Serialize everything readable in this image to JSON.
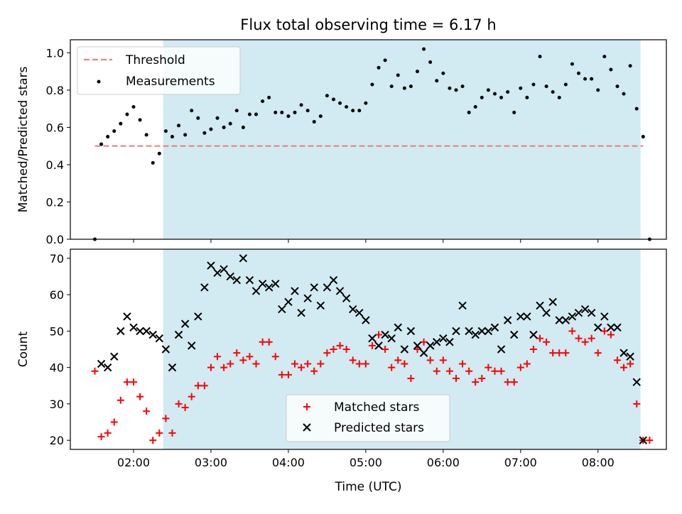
{
  "figure": {
    "title": "Flux total observing time = 6.17 h"
  },
  "chart_data": [
    {
      "type": "scatter",
      "ylabel": "Matched/Predicted stars",
      "xlim": [
        "01:11",
        "08:53"
      ],
      "ylim": [
        0,
        1.07
      ],
      "yticks": [
        0.0,
        0.2,
        0.4,
        0.6,
        0.8,
        1.0
      ],
      "ytick_labels": [
        "0.0",
        "0.2",
        "0.4",
        "0.6",
        "0.8",
        "1.0"
      ],
      "shaded_interval": [
        "02:23",
        "08:33"
      ],
      "shade_color": "#add8e6",
      "legend": {
        "position": "upper-left",
        "entries": [
          "Threshold",
          "Measurements"
        ]
      },
      "series": [
        {
          "name": "Threshold",
          "style": "dashed-line",
          "color": "#f08080",
          "x": [
            "01:30",
            "08:35"
          ],
          "values": [
            0.5,
            0.5
          ]
        },
        {
          "name": "Measurements",
          "style": "dots",
          "color": "#000000",
          "x": [
            "01:30",
            "01:35",
            "01:40",
            "01:45",
            "01:50",
            "01:55",
            "02:00",
            "02:05",
            "02:10",
            "02:15",
            "02:20",
            "02:25",
            "02:30",
            "02:35",
            "02:40",
            "02:45",
            "02:50",
            "02:55",
            "03:00",
            "03:05",
            "03:10",
            "03:15",
            "03:20",
            "03:25",
            "03:30",
            "03:35",
            "03:40",
            "03:45",
            "03:50",
            "03:55",
            "04:00",
            "04:05",
            "04:10",
            "04:15",
            "04:20",
            "04:25",
            "04:30",
            "04:35",
            "04:40",
            "04:45",
            "04:50",
            "04:55",
            "05:00",
            "05:05",
            "05:10",
            "05:15",
            "05:20",
            "05:25",
            "05:30",
            "05:35",
            "05:40",
            "05:45",
            "05:50",
            "05:55",
            "06:00",
            "06:05",
            "06:10",
            "06:15",
            "06:20",
            "06:25",
            "06:30",
            "06:35",
            "06:40",
            "06:45",
            "06:50",
            "06:55",
            "07:00",
            "07:05",
            "07:10",
            "07:15",
            "07:20",
            "07:25",
            "07:30",
            "07:35",
            "07:40",
            "07:45",
            "07:50",
            "07:55",
            "08:00",
            "08:05",
            "08:10",
            "08:15",
            "08:20",
            "08:25",
            "08:30",
            "08:35",
            "08:40"
          ],
          "values": [
            0.0,
            0.51,
            0.55,
            0.58,
            0.62,
            0.67,
            0.71,
            0.64,
            0.56,
            0.41,
            0.46,
            0.58,
            0.55,
            0.61,
            0.56,
            0.69,
            0.65,
            0.57,
            0.59,
            0.65,
            0.6,
            0.62,
            0.69,
            0.6,
            0.67,
            0.67,
            0.74,
            0.76,
            0.68,
            0.68,
            0.66,
            0.68,
            0.72,
            0.69,
            0.63,
            0.66,
            0.77,
            0.75,
            0.73,
            0.71,
            0.69,
            0.69,
            0.73,
            0.83,
            0.92,
            0.96,
            0.82,
            0.88,
            0.81,
            0.82,
            0.9,
            1.02,
            0.95,
            0.85,
            0.89,
            0.81,
            0.8,
            0.82,
            0.68,
            0.71,
            0.76,
            0.8,
            0.78,
            0.76,
            0.79,
            0.68,
            0.81,
            0.76,
            0.83,
            0.98,
            0.82,
            0.79,
            0.76,
            0.83,
            0.94,
            0.89,
            0.86,
            0.86,
            0.8,
            0.98,
            0.91,
            0.82,
            0.78,
            0.93,
            0.7,
            0.55,
            0.0
          ]
        }
      ]
    },
    {
      "type": "scatter",
      "xlabel": "Time (UTC)",
      "ylabel": "Count",
      "xlim": [
        "01:11",
        "08:53"
      ],
      "ylim": [
        17.5,
        72.5
      ],
      "xticks": [
        "02:00",
        "03:00",
        "04:00",
        "05:00",
        "06:00",
        "07:00",
        "08:00"
      ],
      "yticks": [
        20,
        30,
        40,
        50,
        60,
        70
      ],
      "ytick_labels": [
        "20",
        "30",
        "40",
        "50",
        "60",
        "70"
      ],
      "shaded_interval": [
        "02:23",
        "08:33"
      ],
      "shade_color": "#add8e6",
      "legend": {
        "position": "lower-center",
        "entries": [
          "Matched stars",
          "Predicted stars"
        ]
      },
      "series": [
        {
          "name": "Matched stars",
          "marker": "plus",
          "color": "#ff0000",
          "x": [
            "01:30",
            "01:35",
            "01:40",
            "01:45",
            "01:50",
            "01:55",
            "02:00",
            "02:05",
            "02:10",
            "02:15",
            "02:20",
            "02:25",
            "02:30",
            "02:35",
            "02:40",
            "02:45",
            "02:50",
            "02:55",
            "03:00",
            "03:05",
            "03:10",
            "03:15",
            "03:20",
            "03:25",
            "03:30",
            "03:35",
            "03:40",
            "03:45",
            "03:50",
            "03:55",
            "04:00",
            "04:05",
            "04:10",
            "04:15",
            "04:20",
            "04:25",
            "04:30",
            "04:35",
            "04:40",
            "04:45",
            "04:50",
            "04:55",
            "05:00",
            "05:05",
            "05:10",
            "05:15",
            "05:20",
            "05:25",
            "05:30",
            "05:35",
            "05:40",
            "05:45",
            "05:50",
            "05:55",
            "06:00",
            "06:05",
            "06:10",
            "06:15",
            "06:20",
            "06:25",
            "06:30",
            "06:35",
            "06:40",
            "06:45",
            "06:50",
            "06:55",
            "07:00",
            "07:05",
            "07:10",
            "07:15",
            "07:20",
            "07:25",
            "07:30",
            "07:35",
            "07:40",
            "07:45",
            "07:50",
            "07:55",
            "08:00",
            "08:05",
            "08:10",
            "08:15",
            "08:20",
            "08:25",
            "08:30",
            "08:35",
            "08:40"
          ],
          "values": [
            39,
            21,
            22,
            25,
            31,
            36,
            36,
            32,
            28,
            20,
            22,
            26,
            22,
            30,
            29,
            32,
            35,
            35,
            40,
            43,
            40,
            41,
            44,
            42,
            43,
            41,
            47,
            47,
            43,
            38,
            38,
            41,
            40,
            41,
            39,
            41,
            44,
            45,
            46,
            45,
            42,
            41,
            41,
            46,
            49,
            45,
            40,
            42,
            41,
            37,
            45,
            47,
            42,
            39,
            42,
            39,
            37,
            41,
            39,
            36,
            37,
            40,
            39,
            39,
            36,
            36,
            40,
            41,
            45,
            48,
            47,
            44,
            44,
            44,
            50,
            48,
            47,
            48,
            44,
            50,
            49,
            42,
            40,
            41,
            30,
            20,
            20
          ]
        },
        {
          "name": "Predicted stars",
          "marker": "x",
          "color": "#000000",
          "x": [
            "01:35",
            "01:40",
            "01:45",
            "01:50",
            "01:55",
            "02:00",
            "02:05",
            "02:10",
            "02:15",
            "02:20",
            "02:25",
            "02:30",
            "02:35",
            "02:40",
            "02:45",
            "02:50",
            "02:55",
            "03:00",
            "03:05",
            "03:10",
            "03:15",
            "03:20",
            "03:25",
            "03:30",
            "03:35",
            "03:40",
            "03:45",
            "03:50",
            "03:55",
            "04:00",
            "04:05",
            "04:10",
            "04:15",
            "04:20",
            "04:25",
            "04:30",
            "04:35",
            "04:40",
            "04:45",
            "04:50",
            "04:55",
            "05:00",
            "05:05",
            "05:10",
            "05:15",
            "05:20",
            "05:25",
            "05:30",
            "05:35",
            "05:40",
            "05:45",
            "05:50",
            "05:55",
            "06:00",
            "06:05",
            "06:10",
            "06:15",
            "06:20",
            "06:25",
            "06:30",
            "06:35",
            "06:40",
            "06:45",
            "06:50",
            "06:55",
            "07:00",
            "07:05",
            "07:10",
            "07:15",
            "07:20",
            "07:25",
            "07:30",
            "07:35",
            "07:40",
            "07:45",
            "07:50",
            "07:55",
            "08:00",
            "08:05",
            "08:10",
            "08:15",
            "08:20",
            "08:25",
            "08:30",
            "08:35"
          ],
          "values": [
            41,
            40,
            43,
            50,
            54,
            51,
            50,
            50,
            49,
            48,
            45,
            40,
            49,
            52,
            46,
            54,
            62,
            68,
            66,
            67,
            65,
            64,
            70,
            64,
            61,
            63,
            62,
            63,
            56,
            58,
            61,
            55,
            59,
            62,
            57,
            62,
            64,
            61,
            59,
            56,
            55,
            53,
            48,
            46,
            49,
            48,
            51,
            45,
            50,
            46,
            44,
            46,
            47,
            48,
            47,
            50,
            57,
            50,
            49,
            50,
            50,
            51,
            45,
            53,
            49,
            54,
            54,
            49,
            57,
            55,
            58,
            53,
            53,
            54,
            55,
            56,
            55,
            51,
            54,
            51,
            51,
            44,
            43,
            36,
            20
          ]
        }
      ]
    }
  ]
}
